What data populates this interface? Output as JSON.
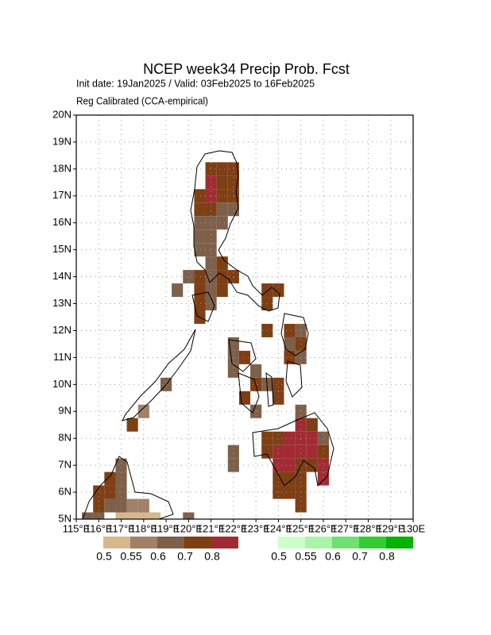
{
  "chart_data": {
    "type": "grid_map",
    "title": "NCEP week34 Precip Prob. Fcst",
    "subtitle": "Init date: 19Jan2025 / Valid: 03Feb2025 to 16Feb2025",
    "subtitle2": "Reg Calibrated (CCA-empirical)",
    "xlim": [
      115,
      130
    ],
    "ylim": [
      5,
      20
    ],
    "grid": true,
    "cell_size": 0.5,
    "xticks": [
      {
        "value": 115,
        "label": "115°E"
      },
      {
        "value": 116,
        "label": "116°E"
      },
      {
        "value": 117,
        "label": "117°E"
      },
      {
        "value": 118,
        "label": "118°E"
      },
      {
        "value": 119,
        "label": "119°E"
      },
      {
        "value": 120,
        "label": "120°E"
      },
      {
        "value": 121,
        "label": "121°E"
      },
      {
        "value": 122,
        "label": "122°E"
      },
      {
        "value": 123,
        "label": "123°E"
      },
      {
        "value": 124,
        "label": "124°E"
      },
      {
        "value": 125,
        "label": "125°E"
      },
      {
        "value": 126,
        "label": "126°E"
      },
      {
        "value": 127,
        "label": "127°E"
      },
      {
        "value": 128,
        "label": "128°E"
      },
      {
        "value": 129,
        "label": "129°E"
      },
      {
        "value": 130,
        "label": "130E"
      }
    ],
    "yticks": [
      {
        "value": 5,
        "label": "5N"
      },
      {
        "value": 6,
        "label": "6N"
      },
      {
        "value": 7,
        "label": "7N"
      },
      {
        "value": 8,
        "label": "8N"
      },
      {
        "value": 9,
        "label": "9N"
      },
      {
        "value": 10,
        "label": "10N"
      },
      {
        "value": 11,
        "label": "11N"
      },
      {
        "value": 12,
        "label": "12N"
      },
      {
        "value": 13,
        "label": "13N"
      },
      {
        "value": 14,
        "label": "14N"
      },
      {
        "value": 15,
        "label": "15N"
      },
      {
        "value": 16,
        "label": "16N"
      },
      {
        "value": 17,
        "label": "17N"
      },
      {
        "value": 18,
        "label": "18N"
      },
      {
        "value": 19,
        "label": "19N"
      },
      {
        "value": 20,
        "label": "20N"
      }
    ],
    "levels": [
      0.5,
      0.55,
      0.6,
      0.7,
      0.8
    ],
    "dry_colors": [
      "#d6b88e",
      "#a08068",
      "#7e604a",
      "#7e3f14",
      "#a22b33"
    ],
    "wet_colors": [
      "#ccffcc",
      "#aaf3aa",
      "#70e070",
      "#33cc33",
      "#00b400"
    ],
    "cells": [
      [
        121,
        18,
        0.7
      ],
      [
        121.5,
        18,
        0.7
      ],
      [
        122,
        18,
        0.7
      ],
      [
        121,
        17.5,
        0.8
      ],
      [
        121.5,
        17.5,
        0.7
      ],
      [
        122,
        17.5,
        0.7
      ],
      [
        120.5,
        17,
        0.7
      ],
      [
        121,
        17,
        0.8
      ],
      [
        121.5,
        17,
        0.7
      ],
      [
        122,
        17,
        0.7
      ],
      [
        120.5,
        16.5,
        0.7
      ],
      [
        121,
        16.5,
        0.7
      ],
      [
        121.5,
        16.5,
        0.6
      ],
      [
        122,
        16.5,
        0.6
      ],
      [
        120.5,
        16,
        0.6
      ],
      [
        121,
        16,
        0.6
      ],
      [
        121.5,
        16,
        0.6
      ],
      [
        120.5,
        15.5,
        0.6
      ],
      [
        121,
        15.5,
        0.6
      ],
      [
        120.5,
        15,
        0.6
      ],
      [
        121,
        15,
        0.6
      ],
      [
        121,
        14.5,
        0.6
      ],
      [
        121.5,
        14.5,
        0.7
      ],
      [
        120,
        14,
        0.6
      ],
      [
        120.5,
        14,
        0.7
      ],
      [
        121,
        14,
        0.6
      ],
      [
        121.5,
        14,
        0.7
      ],
      [
        122,
        14,
        0.7
      ],
      [
        119.5,
        13.5,
        0.6
      ],
      [
        120.5,
        13.5,
        0.7
      ],
      [
        121,
        13.5,
        0.6
      ],
      [
        121.5,
        13.5,
        0.7
      ],
      [
        123.5,
        13.5,
        0.7
      ],
      [
        124,
        13.5,
        0.7
      ],
      [
        120.5,
        13,
        0.7
      ],
      [
        121,
        13,
        0.6
      ],
      [
        123.5,
        13,
        0.7
      ],
      [
        120.5,
        12.5,
        0.7
      ],
      [
        123.5,
        12,
        0.7
      ],
      [
        124.5,
        12,
        0.7
      ],
      [
        125,
        12,
        0.6
      ],
      [
        122,
        11.5,
        0.6
      ],
      [
        124.5,
        11.5,
        0.6
      ],
      [
        125,
        11.5,
        0.7
      ],
      [
        122,
        11,
        0.6
      ],
      [
        122.5,
        11,
        0.7
      ],
      [
        124.5,
        11,
        0.7
      ],
      [
        125,
        11,
        0.6
      ],
      [
        122,
        10.5,
        0.6
      ],
      [
        123,
        10.5,
        0.6
      ],
      [
        119,
        10,
        0.6
      ],
      [
        123,
        10,
        0.7
      ],
      [
        123.5,
        10,
        0.6
      ],
      [
        124,
        10,
        0.7
      ],
      [
        122.5,
        9.5,
        0.7
      ],
      [
        124,
        9.5,
        0.7
      ],
      [
        118,
        9,
        0.55
      ],
      [
        123,
        9,
        0.6
      ],
      [
        125,
        9,
        0.6
      ],
      [
        117.5,
        8.5,
        0.7
      ],
      [
        125,
        8.5,
        0.8
      ],
      [
        125.5,
        8.5,
        0.7
      ],
      [
        123.5,
        8,
        0.7
      ],
      [
        124,
        8,
        0.7
      ],
      [
        124.5,
        8,
        0.8
      ],
      [
        125,
        8,
        0.8
      ],
      [
        125.5,
        8,
        0.8
      ],
      [
        126,
        8,
        0.6
      ],
      [
        122,
        7.5,
        0.6
      ],
      [
        123.5,
        7.5,
        0.7
      ],
      [
        124,
        7.5,
        0.8
      ],
      [
        124.5,
        7.5,
        0.8
      ],
      [
        125,
        7.5,
        0.8
      ],
      [
        125.5,
        7.5,
        0.8
      ],
      [
        126,
        7.5,
        0.7
      ],
      [
        117,
        7,
        0.6
      ],
      [
        122,
        7,
        0.6
      ],
      [
        124,
        7,
        0.8
      ],
      [
        124.5,
        7,
        0.8
      ],
      [
        125,
        7,
        0.7
      ],
      [
        125.5,
        7,
        0.7
      ],
      [
        126,
        7,
        0.8
      ],
      [
        116.5,
        6.5,
        0.7
      ],
      [
        117,
        6.5,
        0.6
      ],
      [
        124,
        6.5,
        0.7
      ],
      [
        124.5,
        6.5,
        0.7
      ],
      [
        125,
        6.5,
        0.7
      ],
      [
        126,
        6.5,
        0.8
      ],
      [
        116,
        6,
        0.7
      ],
      [
        116.5,
        6,
        0.7
      ],
      [
        117,
        6,
        0.6
      ],
      [
        124,
        6,
        0.7
      ],
      [
        124.5,
        6,
        0.7
      ],
      [
        125,
        6,
        0.7
      ],
      [
        116,
        5.5,
        0.7
      ],
      [
        116.5,
        5.5,
        0.6
      ],
      [
        117,
        5.5,
        0.6
      ],
      [
        117.5,
        5.5,
        0.55
      ],
      [
        118,
        5.5,
        0.55
      ],
      [
        125,
        5.5,
        0.7
      ],
      [
        115.5,
        5,
        0.6
      ],
      [
        116,
        5,
        0.6
      ],
      [
        117,
        5,
        0.5
      ],
      [
        117.5,
        5,
        0.5
      ],
      [
        118,
        5,
        0.5
      ],
      [
        118.5,
        5,
        0.5
      ],
      [
        120,
        5,
        0.6
      ]
    ]
  }
}
